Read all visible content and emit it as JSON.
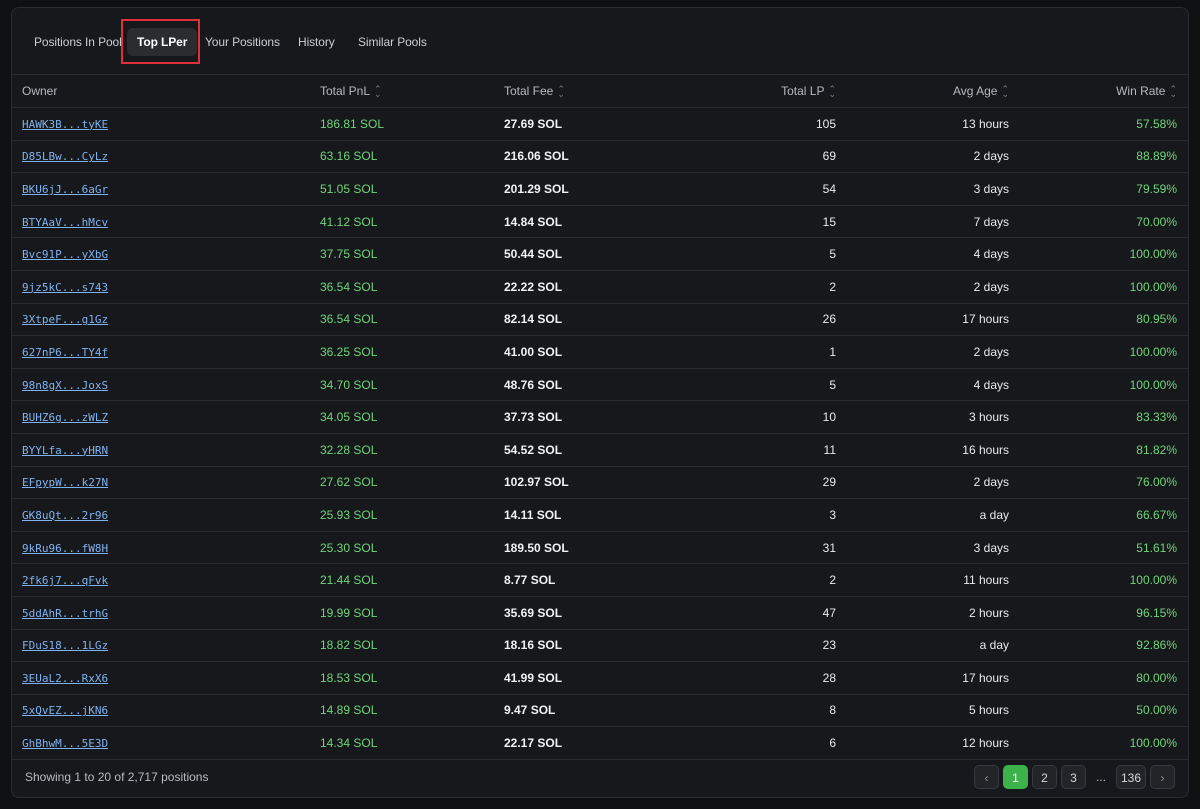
{
  "tabs": [
    {
      "label": "Positions In Pool"
    },
    {
      "label": "Top LPer"
    },
    {
      "label": "Your Positions"
    },
    {
      "label": "History"
    },
    {
      "label": "Similar Pools"
    }
  ],
  "active_tab": "Top LPer",
  "table": {
    "columns": {
      "owner": "Owner",
      "pnl": "Total PnL",
      "fee": "Total Fee",
      "lp": "Total LP",
      "age": "Avg Age",
      "win": "Win Rate"
    },
    "rows": [
      {
        "owner": "HAWK3B...tyKE",
        "pnl": "186.81 SOL",
        "fee": "27.69 SOL",
        "lp": "105",
        "age": "13 hours",
        "win": "57.58%"
      },
      {
        "owner": "D85LBw...CyLz",
        "pnl": "63.16 SOL",
        "fee": "216.06 SOL",
        "lp": "69",
        "age": "2 days",
        "win": "88.89%"
      },
      {
        "owner": "BKU6jJ...6aGr",
        "pnl": "51.05 SOL",
        "fee": "201.29 SOL",
        "lp": "54",
        "age": "3 days",
        "win": "79.59%"
      },
      {
        "owner": "BTYAaV...hMcv",
        "pnl": "41.12 SOL",
        "fee": "14.84 SOL",
        "lp": "15",
        "age": "7 days",
        "win": "70.00%"
      },
      {
        "owner": "Bvc91P...yXbG",
        "pnl": "37.75 SOL",
        "fee": "50.44 SOL",
        "lp": "5",
        "age": "4 days",
        "win": "100.00%"
      },
      {
        "owner": "9jz5kC...s743",
        "pnl": "36.54 SOL",
        "fee": "22.22 SOL",
        "lp": "2",
        "age": "2 days",
        "win": "100.00%"
      },
      {
        "owner": "3XtpeF...g1Gz",
        "pnl": "36.54 SOL",
        "fee": "82.14 SOL",
        "lp": "26",
        "age": "17 hours",
        "win": "80.95%"
      },
      {
        "owner": "627nP6...TY4f",
        "pnl": "36.25 SOL",
        "fee": "41.00 SOL",
        "lp": "1",
        "age": "2 days",
        "win": "100.00%"
      },
      {
        "owner": "98n8gX...JoxS",
        "pnl": "34.70 SOL",
        "fee": "48.76 SOL",
        "lp": "5",
        "age": "4 days",
        "win": "100.00%"
      },
      {
        "owner": "BUHZ6g...zWLZ",
        "pnl": "34.05 SOL",
        "fee": "37.73 SOL",
        "lp": "10",
        "age": "3 hours",
        "win": "83.33%"
      },
      {
        "owner": "BYYLfa...yHRN",
        "pnl": "32.28 SOL",
        "fee": "54.52 SOL",
        "lp": "11",
        "age": "16 hours",
        "win": "81.82%"
      },
      {
        "owner": "EFpypW...k27N",
        "pnl": "27.62 SOL",
        "fee": "102.97 SOL",
        "lp": "29",
        "age": "2 days",
        "win": "76.00%"
      },
      {
        "owner": "GK8uQt...2r96",
        "pnl": "25.93 SOL",
        "fee": "14.11 SOL",
        "lp": "3",
        "age": "a day",
        "win": "66.67%"
      },
      {
        "owner": "9kRu96...fW8H",
        "pnl": "25.30 SOL",
        "fee": "189.50 SOL",
        "lp": "31",
        "age": "3 days",
        "win": "51.61%"
      },
      {
        "owner": "2fk6j7...qFvk",
        "pnl": "21.44 SOL",
        "fee": "8.77 SOL",
        "lp": "2",
        "age": "11 hours",
        "win": "100.00%"
      },
      {
        "owner": "5ddAhR...trhG",
        "pnl": "19.99 SOL",
        "fee": "35.69 SOL",
        "lp": "47",
        "age": "2 hours",
        "win": "96.15%"
      },
      {
        "owner": "FDuS18...1LGz",
        "pnl": "18.82 SOL",
        "fee": "18.16 SOL",
        "lp": "23",
        "age": "a day",
        "win": "92.86%"
      },
      {
        "owner": "3EUaL2...RxX6",
        "pnl": "18.53 SOL",
        "fee": "41.99 SOL",
        "lp": "28",
        "age": "17 hours",
        "win": "80.00%"
      },
      {
        "owner": "5xQvEZ...jKN6",
        "pnl": "14.89 SOL",
        "fee": "9.47 SOL",
        "lp": "8",
        "age": "5 hours",
        "win": "50.00%"
      },
      {
        "owner": "GhBhwM...5E3D",
        "pnl": "14.34 SOL",
        "fee": "22.17 SOL",
        "lp": "6",
        "age": "12 hours",
        "win": "100.00%"
      }
    ]
  },
  "footer": {
    "showing": "Showing 1 to 20 of 2,717 positions"
  },
  "pagination": {
    "prev": "‹",
    "pages": [
      "1",
      "2",
      "3"
    ],
    "ellipsis": "...",
    "last": "136",
    "next": "›",
    "current": "1"
  },
  "colors": {
    "positive": "#6fd67a",
    "link": "#7fb2f0",
    "active_page": "#3bb34a",
    "highlight": "#e0313a"
  },
  "icons": {
    "sort": "sort-icon",
    "prev": "chevron-left-icon",
    "next": "chevron-right-icon"
  }
}
